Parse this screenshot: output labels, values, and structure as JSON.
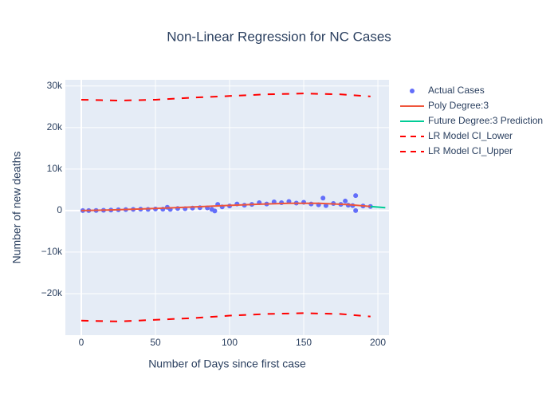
{
  "chart_data": {
    "type": "scatter",
    "title": "Non-Linear Regression for NC Cases",
    "x_label": "Number of Days since first case",
    "y_label": "Number of new deaths",
    "xlim": [
      -10.75,
      207.5
    ],
    "ylim": [
      -30000,
      31500
    ],
    "xticks": [
      0,
      50,
      100,
      150,
      200
    ],
    "yticks": [
      {
        "value": -20000,
        "label": "−20k"
      },
      {
        "value": -10000,
        "label": "−10k"
      },
      0,
      {
        "value": 10000,
        "label": "10k"
      },
      {
        "value": 20000,
        "label": "20k"
      },
      {
        "value": 30000,
        "label": "30k"
      }
    ],
    "grid": true,
    "legend": "right",
    "series": [
      {
        "name": "Actual Cases",
        "color": "#636efa",
        "mode": "markers",
        "x": [
          1,
          5,
          10,
          15,
          20,
          25,
          30,
          35,
          40,
          45,
          50,
          55,
          58,
          60,
          65,
          70,
          75,
          80,
          85,
          88,
          90,
          92,
          95,
          100,
          105,
          110,
          115,
          120,
          125,
          130,
          135,
          140,
          145,
          150,
          155,
          160,
          163,
          165,
          170,
          175,
          178,
          180,
          183,
          185,
          185,
          190,
          195
        ],
        "values": [
          0,
          10,
          30,
          80,
          120,
          200,
          250,
          300,
          350,
          300,
          400,
          350,
          800,
          300,
          500,
          450,
          600,
          700,
          650,
          300,
          -100,
          1500,
          900,
          1100,
          1600,
          1300,
          1500,
          1900,
          1600,
          2100,
          1900,
          2200,
          1800,
          2000,
          1600,
          1400,
          3000,
          1200,
          1700,
          1500,
          2300,
          1300,
          1200,
          3600,
          0,
          1100,
          1000
        ]
      },
      {
        "name": "Poly Degree:3",
        "color": "#ef553b",
        "mode": "lines",
        "x": [
          0,
          20,
          40,
          60,
          80,
          100,
          120,
          140,
          160,
          180,
          195
        ],
        "values": [
          0,
          150,
          380,
          650,
          950,
          1250,
          1550,
          1750,
          1750,
          1450,
          1000
        ]
      },
      {
        "name": "Future Degree:3 Prediction",
        "color": "#00cc96",
        "mode": "lines",
        "x": [
          195,
          200,
          205
        ],
        "values": [
          1000,
          850,
          700
        ]
      },
      {
        "name": "LR Model CI_Lower",
        "color": "#ff0000",
        "mode": "lines",
        "dash": true,
        "x": [
          0,
          25,
          50,
          75,
          100,
          125,
          150,
          175,
          195
        ],
        "values": [
          -26500,
          -26700,
          -26300,
          -25900,
          -25300,
          -24900,
          -24700,
          -24900,
          -25500
        ]
      },
      {
        "name": "LR Model CI_Upper",
        "color": "#ff0000",
        "mode": "lines",
        "dash": true,
        "x": [
          0,
          25,
          50,
          75,
          100,
          125,
          150,
          175,
          195
        ],
        "values": [
          26700,
          26500,
          26700,
          27200,
          27600,
          28000,
          28200,
          28000,
          27500
        ]
      }
    ]
  }
}
